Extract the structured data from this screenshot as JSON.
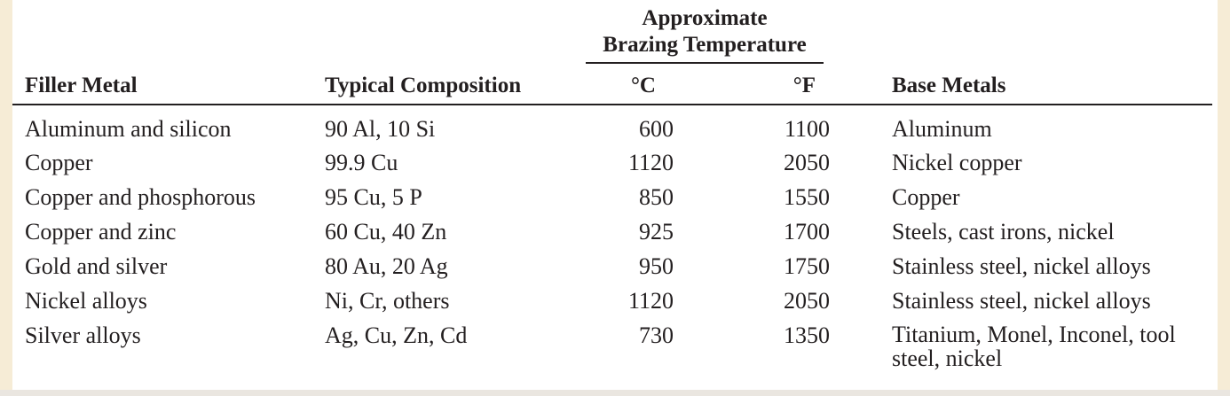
{
  "table": {
    "group_header_line1": "Approximate",
    "group_header_line2": "Brazing Temperature",
    "headers": {
      "filler_metal": "Filler Metal",
      "typical_composition": "Typical Composition",
      "celsius": "°C",
      "fahrenheit": "°F",
      "base_metals": "Base Metals"
    },
    "rows": [
      {
        "filler_metal": "Aluminum and silicon",
        "composition": "90 Al, 10 Si",
        "celsius": "600",
        "fahrenheit": "1100",
        "base_metals": "Aluminum"
      },
      {
        "filler_metal": "Copper",
        "composition": "99.9 Cu",
        "celsius": "1120",
        "fahrenheit": "2050",
        "base_metals": "Nickel copper"
      },
      {
        "filler_metal": "Copper and phosphorous",
        "composition": "95 Cu, 5 P",
        "celsius": "850",
        "fahrenheit": "1550",
        "base_metals": "Copper"
      },
      {
        "filler_metal": "Copper and zinc",
        "composition": "60 Cu, 40 Zn",
        "celsius": "925",
        "fahrenheit": "1700",
        "base_metals": "Steels, cast irons, nickel"
      },
      {
        "filler_metal": "Gold and silver",
        "composition": "80 Au, 20 Ag",
        "celsius": "950",
        "fahrenheit": "1750",
        "base_metals": "Stainless steel, nickel alloys"
      },
      {
        "filler_metal": "Nickel alloys",
        "composition": "Ni, Cr, others",
        "celsius": "1120",
        "fahrenheit": "2050",
        "base_metals": "Stainless steel, nickel alloys"
      },
      {
        "filler_metal": "Silver alloys",
        "composition": "Ag, Cu, Zn, Cd",
        "celsius": "730",
        "fahrenheit": "1350",
        "base_metals": "Titanium, Monel, Inconel, tool steel, nickel"
      }
    ]
  }
}
